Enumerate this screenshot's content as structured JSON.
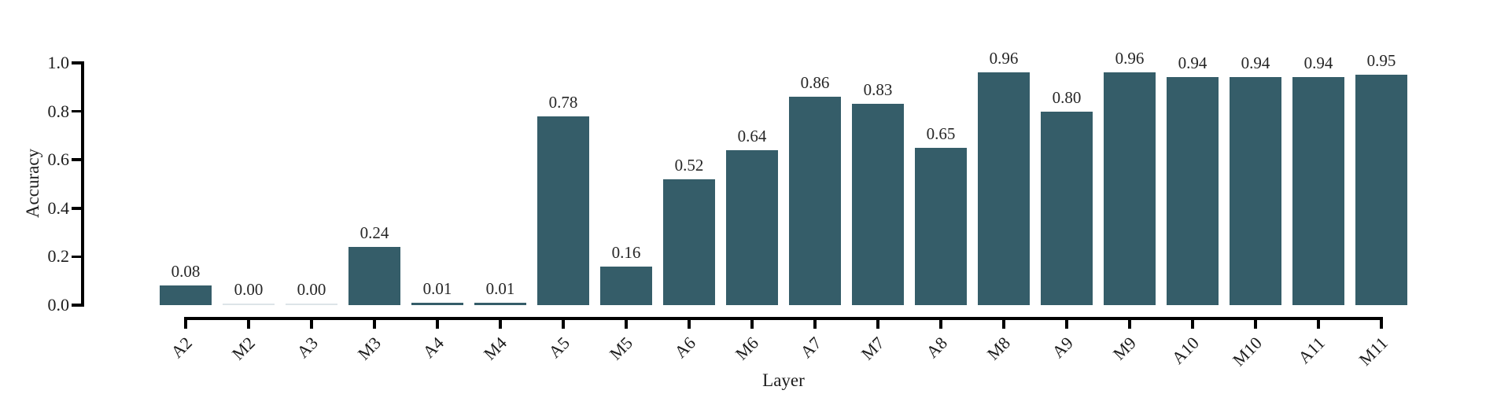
{
  "chart_data": {
    "type": "bar",
    "title": "",
    "xlabel": "Layer",
    "ylabel": "Accuracy",
    "categories": [
      "A2",
      "M2",
      "A3",
      "M3",
      "A4",
      "M4",
      "A5",
      "M5",
      "A6",
      "M6",
      "A7",
      "M7",
      "A8",
      "M8",
      "A9",
      "M9",
      "A10",
      "M10",
      "A11",
      "M11"
    ],
    "values": [
      0.08,
      0.0,
      0.0,
      0.24,
      0.01,
      0.01,
      0.78,
      0.16,
      0.52,
      0.64,
      0.86,
      0.83,
      0.65,
      0.96,
      0.8,
      0.96,
      0.94,
      0.94,
      0.94,
      0.95
    ],
    "value_labels": [
      "0.08",
      "0.00",
      "0.00",
      "0.24",
      "0.01",
      "0.01",
      "0.78",
      "0.16",
      "0.52",
      "0.64",
      "0.86",
      "0.83",
      "0.65",
      "0.96",
      "0.80",
      "0.96",
      "0.94",
      "0.94",
      "0.94",
      "0.95"
    ],
    "yticks": [
      "0.0",
      "0.2",
      "0.4",
      "0.6",
      "0.8",
      "1.0"
    ],
    "ylim": [
      0.0,
      1.0
    ],
    "grid": false,
    "legend": null,
    "bar_color": "#355D69",
    "zero_bar_color": "#dde4e8",
    "axis_color": "#000000",
    "text_color": "#1c1c1c",
    "background_color": "#ffffff",
    "x_tick_rotation_deg": 45
  }
}
